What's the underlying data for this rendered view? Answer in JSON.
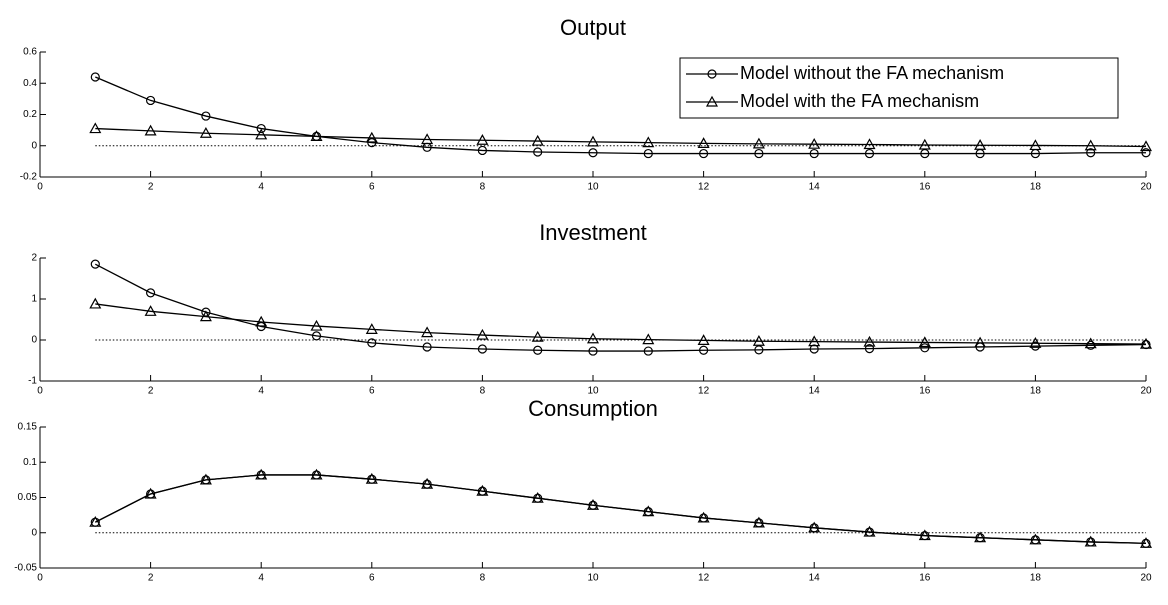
{
  "chart_data": [
    {
      "type": "line",
      "title": "Output",
      "x": [
        1,
        2,
        3,
        4,
        5,
        6,
        7,
        8,
        9,
        10,
        11,
        12,
        13,
        14,
        15,
        16,
        17,
        18,
        19,
        20
      ],
      "series": [
        {
          "name": "Model without the FA mechanism",
          "color": "#000000",
          "marker": "circle",
          "values": [
            0.44,
            0.29,
            0.19,
            0.11,
            0.06,
            0.02,
            -0.01,
            -0.03,
            -0.04,
            -0.045,
            -0.05,
            -0.05,
            -0.05,
            -0.05,
            -0.05,
            -0.05,
            -0.05,
            -0.05,
            -0.045,
            -0.045
          ]
        },
        {
          "name": "Model with the FA mechanism",
          "color": "#000000",
          "marker": "triangle",
          "values": [
            0.11,
            0.095,
            0.08,
            0.07,
            0.06,
            0.05,
            0.04,
            0.035,
            0.03,
            0.025,
            0.02,
            0.015,
            0.012,
            0.01,
            0.008,
            0.005,
            0.003,
            0.002,
            0,
            -0.005
          ]
        }
      ],
      "hline": 0,
      "xlim": [
        0,
        20
      ],
      "xticks": [
        0,
        2,
        4,
        6,
        8,
        10,
        12,
        14,
        16,
        18,
        20
      ],
      "ylim": [
        -0.2,
        0.6
      ],
      "yticks": [
        -0.2,
        0,
        0.2,
        0.4,
        0.6
      ],
      "legend": "upper right"
    },
    {
      "type": "line",
      "title": "Investment",
      "x": [
        1,
        2,
        3,
        4,
        5,
        6,
        7,
        8,
        9,
        10,
        11,
        12,
        13,
        14,
        15,
        16,
        17,
        18,
        19,
        20
      ],
      "series": [
        {
          "color": "#000000",
          "marker": "circle",
          "values": [
            1.85,
            1.15,
            0.68,
            0.33,
            0.1,
            -0.07,
            -0.17,
            -0.22,
            -0.25,
            -0.27,
            -0.27,
            -0.25,
            -0.24,
            -0.22,
            -0.21,
            -0.19,
            -0.17,
            -0.15,
            -0.13,
            -0.11
          ]
        },
        {
          "color": "#000000",
          "marker": "triangle",
          "values": [
            0.88,
            0.7,
            0.57,
            0.44,
            0.34,
            0.26,
            0.18,
            0.12,
            0.07,
            0.03,
            0.01,
            -0.01,
            -0.03,
            -0.04,
            -0.05,
            -0.06,
            -0.07,
            -0.08,
            -0.09,
            -0.1
          ]
        }
      ],
      "hline": 0,
      "xlim": [
        0,
        20
      ],
      "xticks": [
        0,
        2,
        4,
        6,
        8,
        10,
        12,
        14,
        16,
        18,
        20
      ],
      "ylim": [
        -1,
        2
      ],
      "yticks": [
        -1,
        0,
        1,
        2
      ]
    },
    {
      "type": "line",
      "title": "Consumption",
      "x": [
        1,
        2,
        3,
        4,
        5,
        6,
        7,
        8,
        9,
        10,
        11,
        12,
        13,
        14,
        15,
        16,
        17,
        18,
        19,
        20
      ],
      "series": [
        {
          "color": "#000000",
          "marker": "circle",
          "values": [
            0.015,
            0.055,
            0.075,
            0.082,
            0.082,
            0.076,
            0.069,
            0.059,
            0.049,
            0.039,
            0.03,
            0.021,
            0.014,
            0.007,
            0.001,
            -0.004,
            -0.007,
            -0.01,
            -0.013,
            -0.015
          ]
        },
        {
          "color": "#000000",
          "marker": "triangle",
          "values": [
            0.015,
            0.055,
            0.075,
            0.082,
            0.082,
            0.076,
            0.069,
            0.059,
            0.049,
            0.039,
            0.03,
            0.021,
            0.014,
            0.007,
            0.001,
            -0.004,
            -0.007,
            -0.01,
            -0.013,
            -0.015
          ]
        }
      ],
      "hline": 0,
      "xlim": [
        0,
        20
      ],
      "xticks": [
        0,
        2,
        4,
        6,
        8,
        10,
        12,
        14,
        16,
        18,
        20
      ],
      "ylim": [
        -0.05,
        0.15
      ],
      "yticks": [
        -0.05,
        0,
        0.05,
        0.1,
        0.15
      ]
    }
  ]
}
